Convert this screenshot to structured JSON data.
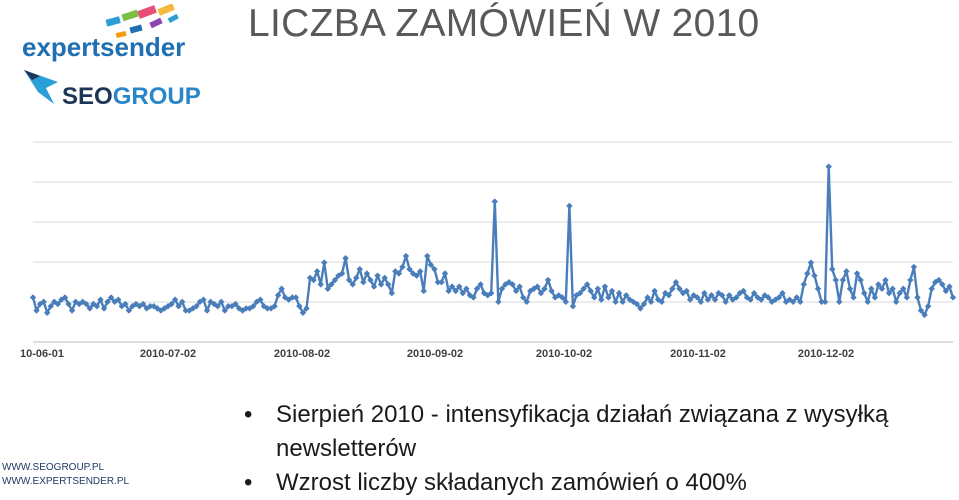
{
  "slide": {
    "title": "LICZBA ZAMÓWIEŃ W 2010",
    "logos": {
      "expertsender": {
        "wordmark": "expertsender",
        "color": "#1f6fb2"
      },
      "seogroup": {
        "wordmark_dark": "SEO",
        "wordmark_blue": "GROUP",
        "color_dark": "#1d3557",
        "color_blue": "#2a86c8",
        "bird_color": "#2a9fd6"
      }
    },
    "bullets": [
      "Sierpień 2010 - intensyfikacja działań związana z wysyłką newsletterów",
      "Wzrost liczby składanych zamówień o 400%"
    ],
    "footer": {
      "line1": "WWW.SEOGROUP.PL",
      "line2": "WWW.EXPERTSENDER.PL"
    }
  },
  "chart_data": {
    "type": "line",
    "title": "",
    "xlabel": "",
    "ylabel": "",
    "x_tick_labels": [
      "10-06-01",
      "2010-07-02",
      "2010-08-02",
      "2010-09-02",
      "2010-10-02",
      "2010-11-02",
      "2010-12-02"
    ],
    "ylim": [
      0,
      100
    ],
    "grid": true,
    "legend": "none",
    "series": [
      {
        "color": "#4a7ebb",
        "marker": "diamond",
        "values": [
          14,
          8,
          11,
          12,
          7,
          10,
          12,
          11,
          13,
          14,
          11,
          8,
          12,
          11,
          12,
          11,
          9,
          11,
          10,
          13,
          9,
          12,
          14,
          12,
          13,
          10,
          11,
          8,
          10,
          11,
          10,
          11,
          9,
          10,
          10,
          9,
          8,
          9,
          10,
          11,
          13,
          10,
          12,
          8,
          8,
          9,
          10,
          12,
          13,
          8,
          12,
          11,
          10,
          12,
          8,
          10,
          10,
          11,
          9,
          8,
          9,
          9,
          10,
          12,
          13,
          10,
          9,
          9,
          10,
          15,
          18,
          14,
          13,
          14,
          14,
          10,
          7,
          9,
          23,
          22,
          26,
          20,
          30,
          18,
          20,
          22,
          24,
          25,
          32,
          22,
          20,
          23,
          27,
          21,
          25,
          22,
          19,
          24,
          20,
          23,
          20,
          16,
          26,
          25,
          28,
          33,
          27,
          25,
          24,
          26,
          17,
          33,
          29,
          27,
          21,
          21,
          25,
          17,
          19,
          17,
          19,
          16,
          18,
          15,
          14,
          18,
          20,
          16,
          15,
          16,
          58,
          12,
          18,
          20,
          21,
          20,
          17,
          19,
          14,
          12,
          17,
          18,
          19,
          16,
          18,
          22,
          17,
          14,
          15,
          14,
          12,
          56,
          10,
          15,
          16,
          18,
          20,
          17,
          14,
          18,
          13,
          19,
          14,
          17,
          12,
          16,
          12,
          15,
          13,
          12,
          11,
          9,
          11,
          14,
          12,
          17,
          13,
          12,
          16,
          15,
          18,
          21,
          18,
          16,
          17,
          13,
          15,
          14,
          12,
          16,
          13,
          15,
          13,
          16,
          15,
          12,
          15,
          13,
          14,
          16,
          17,
          14,
          13,
          16,
          14,
          13,
          15,
          14,
          12,
          13,
          14,
          16,
          12,
          13,
          12,
          14,
          12,
          20,
          25,
          30,
          24,
          18,
          12,
          12,
          74,
          27,
          22,
          12,
          22,
          26,
          18,
          14,
          25,
          22,
          16,
          12,
          18,
          14,
          20,
          18,
          22,
          16,
          18,
          12,
          16,
          18,
          14,
          22,
          28,
          14,
          8,
          6,
          10,
          18,
          21,
          22,
          20,
          17,
          19,
          14
        ]
      }
    ]
  }
}
